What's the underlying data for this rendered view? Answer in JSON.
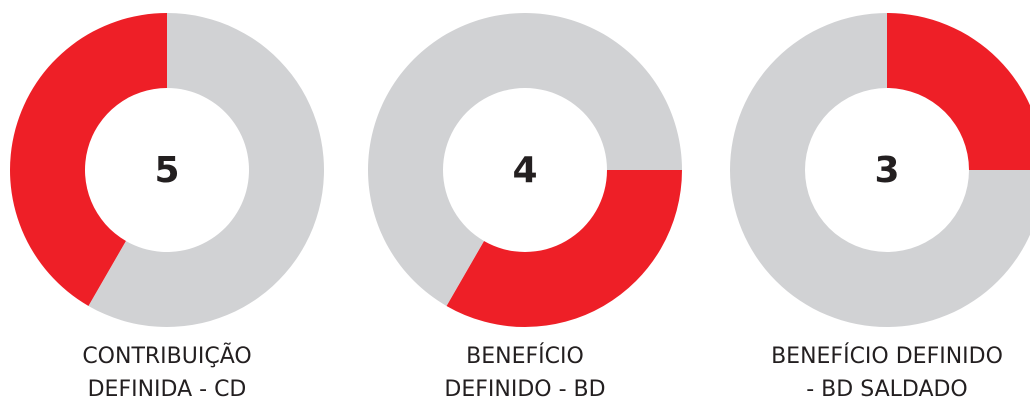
{
  "chart_data": [
    {
      "type": "donut",
      "label": [
        "CONTRIBUIÇÃO",
        "DEFINIDA - CD"
      ],
      "values": [
        5,
        7
      ],
      "colors": [
        "#ee1f27",
        "#d1d2d4"
      ]
    },
    {
      "type": "donut",
      "label": [
        "BENEFÍCIO",
        "DEFINIDO - BD"
      ],
      "values": [
        4,
        8
      ],
      "colors": [
        "#ee1f27",
        "#d1d2d4"
      ]
    },
    {
      "type": "donut",
      "label": [
        "BENEFÍCIO DEFINIDO",
        "- BD SALDADO"
      ],
      "values": [
        3,
        9
      ],
      "colors": [
        "#ee1f27",
        "#d1d2d4"
      ]
    }
  ]
}
